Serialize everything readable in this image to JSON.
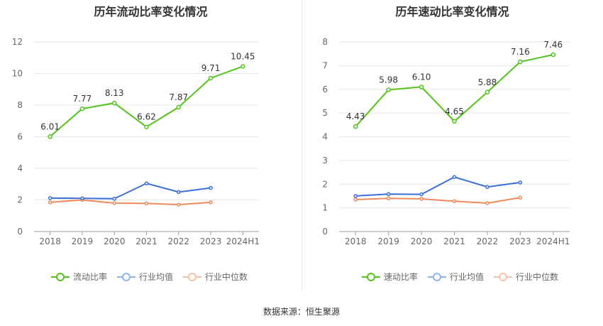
{
  "colors": {
    "primary": "#52c41a",
    "industry_avg": "#3b6fd8",
    "industry_median": "#f08a5d",
    "legend_avg": "#91b4f0",
    "legend_median": "#f7c1a8"
  },
  "source": "数据来源：恒生聚源",
  "chart_data": [
    {
      "type": "line",
      "title": "历年流动比率变化情况",
      "categories": [
        "2018",
        "2019",
        "2020",
        "2021",
        "2022",
        "2023",
        "2024H1"
      ],
      "ylim": [
        0,
        12
      ],
      "yticks": [
        "0",
        "2",
        "4",
        "6",
        "8",
        "10",
        "12"
      ],
      "grid": true,
      "legend_position": "bottom",
      "series": [
        {
          "name": "流动比率",
          "values": [
            6.01,
            7.77,
            8.13,
            6.62,
            7.87,
            9.71,
            10.45
          ],
          "labels": [
            "6.01",
            "7.77",
            "8.13",
            "6.62",
            "7.87",
            "9.71",
            "10.45"
          ]
        },
        {
          "name": "行业均值",
          "values": [
            2.12,
            2.1,
            2.08,
            3.05,
            2.5,
            2.76,
            null
          ]
        },
        {
          "name": "行业中位数",
          "values": [
            1.85,
            2.0,
            1.8,
            1.78,
            1.7,
            1.85,
            null
          ]
        }
      ]
    },
    {
      "type": "line",
      "title": "历年速动比率变化情况",
      "categories": [
        "2018",
        "2019",
        "2020",
        "2021",
        "2022",
        "2023",
        "2024H1"
      ],
      "ylim": [
        0,
        8
      ],
      "yticks": [
        "0",
        "1",
        "2",
        "3",
        "4",
        "5",
        "6",
        "7",
        "8"
      ],
      "grid": true,
      "legend_position": "bottom",
      "series": [
        {
          "name": "速动比率",
          "values": [
            4.43,
            5.98,
            6.1,
            4.65,
            5.88,
            7.16,
            7.46
          ],
          "labels": [
            "4.43",
            "5.98",
            "6.10",
            "4.65",
            "5.88",
            "7.16",
            "7.46"
          ]
        },
        {
          "name": "行业均值",
          "values": [
            1.5,
            1.58,
            1.57,
            2.3,
            1.88,
            2.07,
            null
          ]
        },
        {
          "name": "行业中位数",
          "values": [
            1.35,
            1.4,
            1.38,
            1.28,
            1.2,
            1.43,
            null
          ]
        }
      ]
    }
  ]
}
